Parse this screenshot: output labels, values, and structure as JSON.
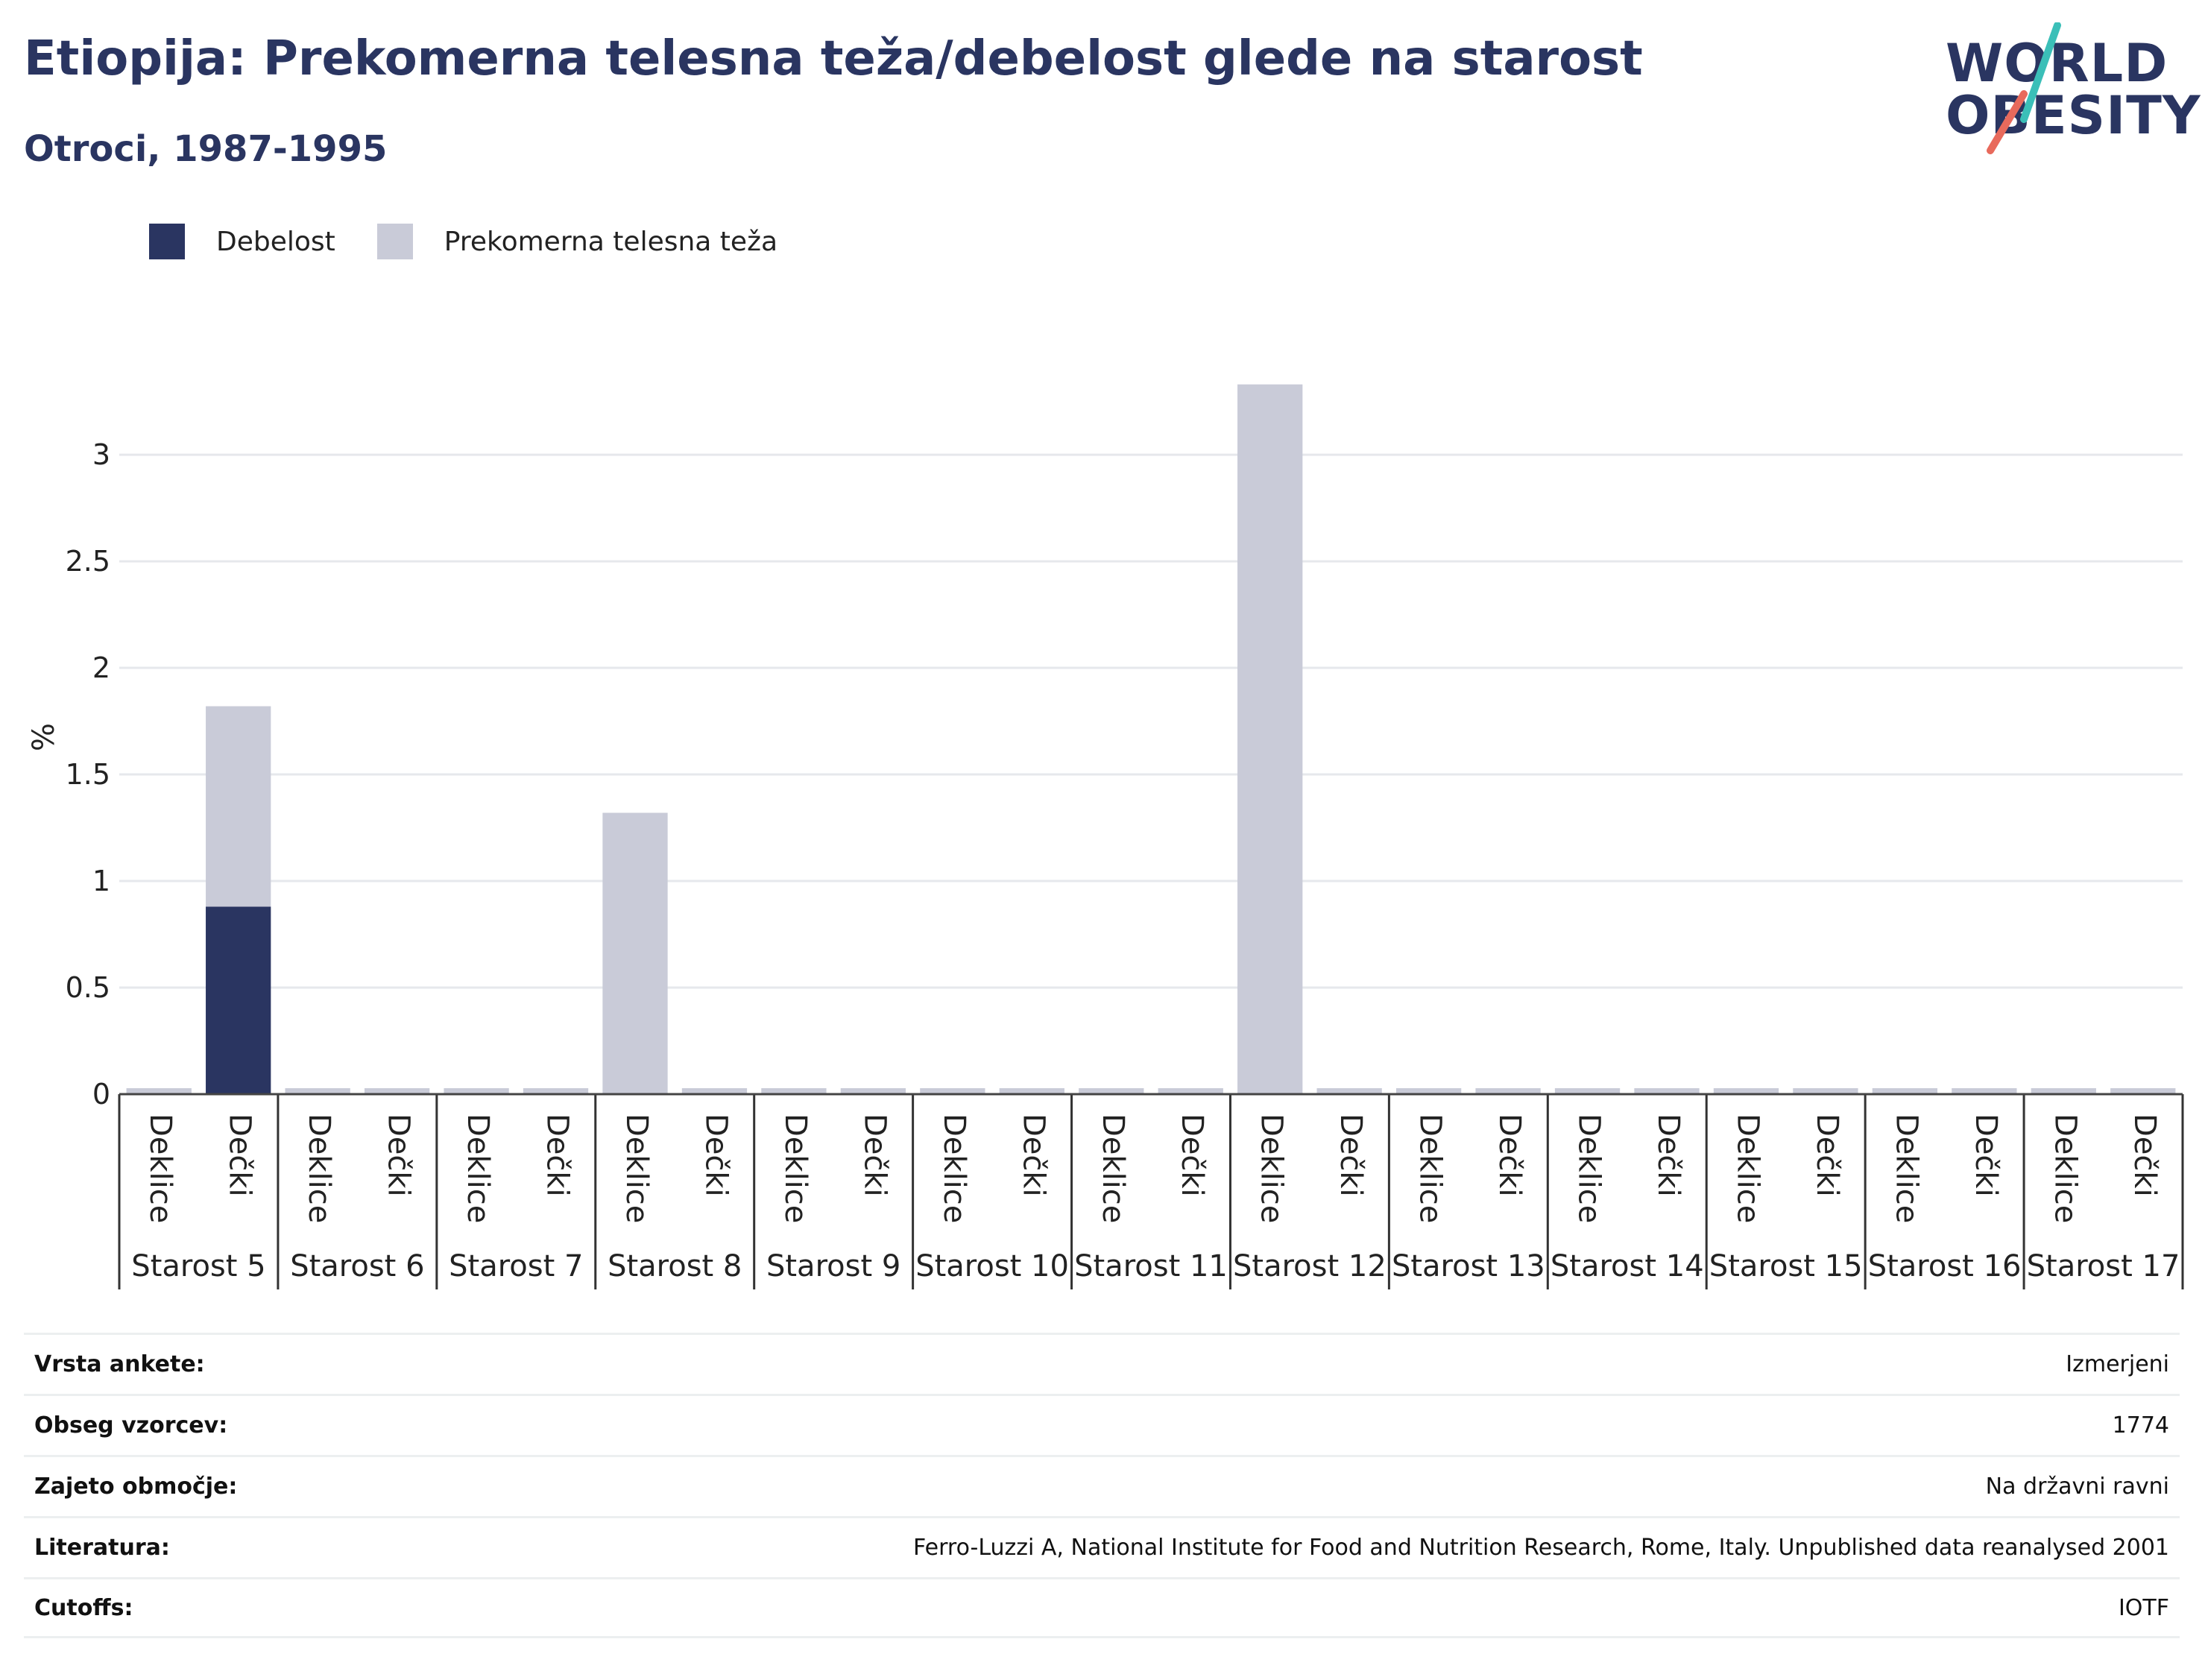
{
  "header": {
    "title": "Etiopija: Prekomerna telesna teža/debelost glede na starost",
    "subtitle": "Otroci, 1987-1995"
  },
  "logo": {
    "line1": "WORLD",
    "line2": "OBESITY",
    "stripe_colors": [
      "#3bbfb8",
      "#e86a5c"
    ]
  },
  "legend": {
    "items": [
      {
        "label": "Debelost",
        "color": "#2a3561"
      },
      {
        "label": "Prekomerna telesna teža",
        "color": "#c9cbd8"
      }
    ]
  },
  "chart_data": {
    "type": "bar",
    "stacked": true,
    "ylabel": "%",
    "ylim": [
      0,
      3.35
    ],
    "yticks": [
      0,
      0.5,
      1,
      1.5,
      2,
      2.5,
      3
    ],
    "groups": [
      "Starost 5",
      "Starost 6",
      "Starost 7",
      "Starost 8",
      "Starost 9",
      "Starost 10",
      "Starost 11",
      "Starost 12",
      "Starost 13",
      "Starost 14",
      "Starost 15",
      "Starost 16",
      "Starost 17"
    ],
    "subcategories": [
      "Deklice",
      "Dečki"
    ],
    "series": [
      {
        "name": "Debelost",
        "color": "#2a3561",
        "values": [
          [
            0,
            0.88
          ],
          [
            0,
            0
          ],
          [
            0,
            0
          ],
          [
            0,
            0
          ],
          [
            0,
            0
          ],
          [
            0,
            0
          ],
          [
            0,
            0
          ],
          [
            0,
            0
          ],
          [
            0,
            0
          ],
          [
            0,
            0
          ],
          [
            0,
            0
          ],
          [
            0,
            0
          ],
          [
            0,
            0
          ]
        ]
      },
      {
        "name": "Prekomerna telesna teža",
        "color": "#c9cbd8",
        "values": [
          [
            0,
            0.94
          ],
          [
            0,
            0
          ],
          [
            0,
            0
          ],
          [
            1.32,
            0
          ],
          [
            0,
            0
          ],
          [
            0,
            0
          ],
          [
            0,
            0
          ],
          [
            3.33,
            0
          ],
          [
            0,
            0
          ],
          [
            0,
            0
          ],
          [
            0,
            0
          ],
          [
            0,
            0
          ],
          [
            0,
            0
          ]
        ]
      }
    ],
    "grid": true,
    "legend_position": "top-left"
  },
  "info_table": [
    {
      "label": "Vrsta ankete:",
      "value": "Izmerjeni"
    },
    {
      "label": "Obseg vzorcev:",
      "value": "1774"
    },
    {
      "label": "Zajeto območje:",
      "value": "Na državni ravni"
    },
    {
      "label": "Literatura:",
      "value": "Ferro-Luzzi A, National Institute for Food and Nutrition Research, Rome, Italy. Unpublished data reanalysed 2001"
    },
    {
      "label": "Cutoffs:",
      "value": "IOTF"
    }
  ]
}
